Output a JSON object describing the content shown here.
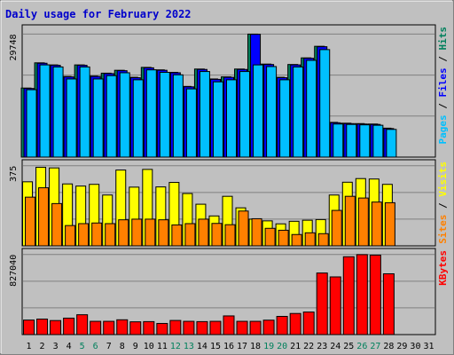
{
  "chart_data": {
    "type": "bar",
    "title": "Daily usage for February 2022",
    "days": [
      "1",
      "2",
      "3",
      "4",
      "5",
      "6",
      "7",
      "8",
      "9",
      "10",
      "11",
      "12",
      "13",
      "14",
      "15",
      "16",
      "17",
      "18",
      "19",
      "20",
      "21",
      "22",
      "23",
      "24",
      "25",
      "26",
      "27",
      "28",
      "29",
      "30",
      "31"
    ],
    "weekend_days": [
      "5",
      "6",
      "12",
      "13",
      "19",
      "20",
      "26",
      "27"
    ],
    "colors": {
      "background": "#c0c0c0",
      "panel_bg": "#c0c0c0",
      "frame": "#e0e0e0",
      "title": "#0000cc",
      "day_weekday": "#000000",
      "day_weekend": "#00805c",
      "hits": "#00805c",
      "files": "#0000ff",
      "pages": "#00c0ff",
      "visits": "#ffff00",
      "sites": "#ff8000",
      "kbytes": "#ff0000"
    },
    "panels": [
      {
        "id": "hits-files-pages",
        "max_label": "29748",
        "ymax": 29748,
        "legend": [
          {
            "text": "Pages",
            "color": "#00c0ff"
          },
          {
            "text": " / ",
            "color": "#000000"
          },
          {
            "text": "Files",
            "color": "#0000ff"
          },
          {
            "text": " / ",
            "color": "#000000"
          },
          {
            "text": "Hits",
            "color": "#00805c"
          }
        ],
        "series": [
          {
            "name": "Hits",
            "color": "#00805c",
            "values": [
              16700,
              22800,
              22300,
              19500,
              22300,
              19600,
              20300,
              21000,
              19300,
              21700,
              21100,
              20500,
              17100,
              21300,
              18900,
              19400,
              21300,
              29748,
              22500,
              19300,
              22400,
              24000,
              26800,
              8400,
              8200,
              8100,
              8000,
              7000,
              0,
              0,
              0
            ]
          },
          {
            "name": "Files",
            "color": "#0000ff",
            "values": [
              16600,
              22700,
              22200,
              19400,
              22200,
              19500,
              20200,
              20900,
              19200,
              21600,
              21000,
              20400,
              17000,
              21200,
              18800,
              19300,
              21200,
              29700,
              22400,
              19200,
              22300,
              23900,
              26700,
              8300,
              8100,
              8000,
              7900,
              6900,
              0,
              0,
              0
            ]
          },
          {
            "name": "Pages",
            "color": "#00c0ff",
            "values": [
              16300,
              22300,
              21800,
              18900,
              21800,
              18900,
              19700,
              20400,
              18700,
              21100,
              20500,
              19900,
              16500,
              20700,
              18200,
              18700,
              20700,
              22300,
              21900,
              18700,
              21800,
              23400,
              26000,
              8000,
              7900,
              7800,
              7700,
              6700,
              0,
              0,
              0
            ]
          }
        ]
      },
      {
        "id": "visits-sites",
        "max_label": "375",
        "ymax": 375,
        "legend": [
          {
            "text": "Sites",
            "color": "#ff8000"
          },
          {
            "text": " / ",
            "color": "#000000"
          },
          {
            "text": "Visits",
            "color": "#ffff00"
          }
        ],
        "series": [
          {
            "name": "Visits",
            "color": "#ffff00",
            "values": [
              300,
              368,
              365,
              290,
              280,
              288,
              238,
              355,
              275,
              358,
              276,
              297,
              245,
              195,
              140,
              232,
              178,
              125,
              117,
              103,
              115,
              120,
              123,
              238,
              298,
              315,
              313,
              288,
              0,
              0,
              0
            ]
          },
          {
            "name": "Sites",
            "color": "#ff8000",
            "values": [
              228,
              272,
              198,
              95,
              104,
              107,
              104,
              122,
              125,
              125,
              122,
              98,
              104,
              125,
              105,
              99,
              163,
              127,
              82,
              73,
              53,
              61,
              57,
              166,
              232,
              224,
              205,
              202,
              0,
              0,
              0
            ]
          }
        ]
      },
      {
        "id": "kbytes",
        "max_label": "827040",
        "ymax": 827040,
        "legend": [
          {
            "text": "KBytes",
            "color": "#ff0000"
          }
        ],
        "series": [
          {
            "name": "KBytes",
            "color": "#ff0000",
            "values": [
              150000,
              160000,
              145000,
              170000,
              205000,
              137000,
              137000,
              153000,
              132000,
              134000,
              115000,
              146000,
              137000,
              134000,
              137000,
              193000,
              137000,
              137000,
              149000,
              188000,
              218000,
              233000,
              636000,
              596000,
              804000,
              826000,
              821000,
              628000,
              0,
              0,
              0
            ]
          }
        ]
      }
    ]
  }
}
